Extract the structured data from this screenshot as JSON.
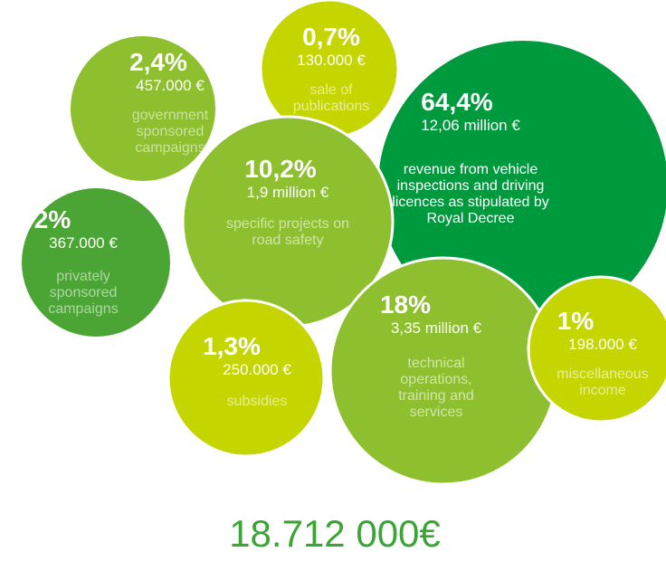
{
  "bubbles": [
    {
      "percent": "64,4%",
      "amount": "12,06 million €",
      "description": [
        "revenue from vehicle",
        "inspections and driving",
        "licences as stipulated by",
        "Royal Decree"
      ]
    },
    {
      "percent": "2,4%",
      "amount": "457.000 €",
      "description": [
        "government",
        "sponsored",
        "campaigns"
      ]
    },
    {
      "percent": "0,7%",
      "amount": "130.000 €",
      "description": [
        "sale of",
        "publications"
      ]
    },
    {
      "percent": "2%",
      "amount": "367.000 €",
      "description": [
        "privately",
        "sponsored",
        "campaigns"
      ]
    },
    {
      "percent": "10,2%",
      "amount": "1,9 million €",
      "description": [
        "specific projects on",
        "road safety"
      ]
    },
    {
      "percent": "1,3%",
      "amount": "250.000 €",
      "description": [
        "subsidies"
      ]
    },
    {
      "percent": "18%",
      "amount": "3,35 million €",
      "description": [
        "technical",
        "operations,",
        "training and",
        "services"
      ]
    },
    {
      "percent": "1%",
      "amount": "198.000 €",
      "description": [
        "miscellaneous",
        "income"
      ]
    }
  ],
  "total": "18.712 000€"
}
